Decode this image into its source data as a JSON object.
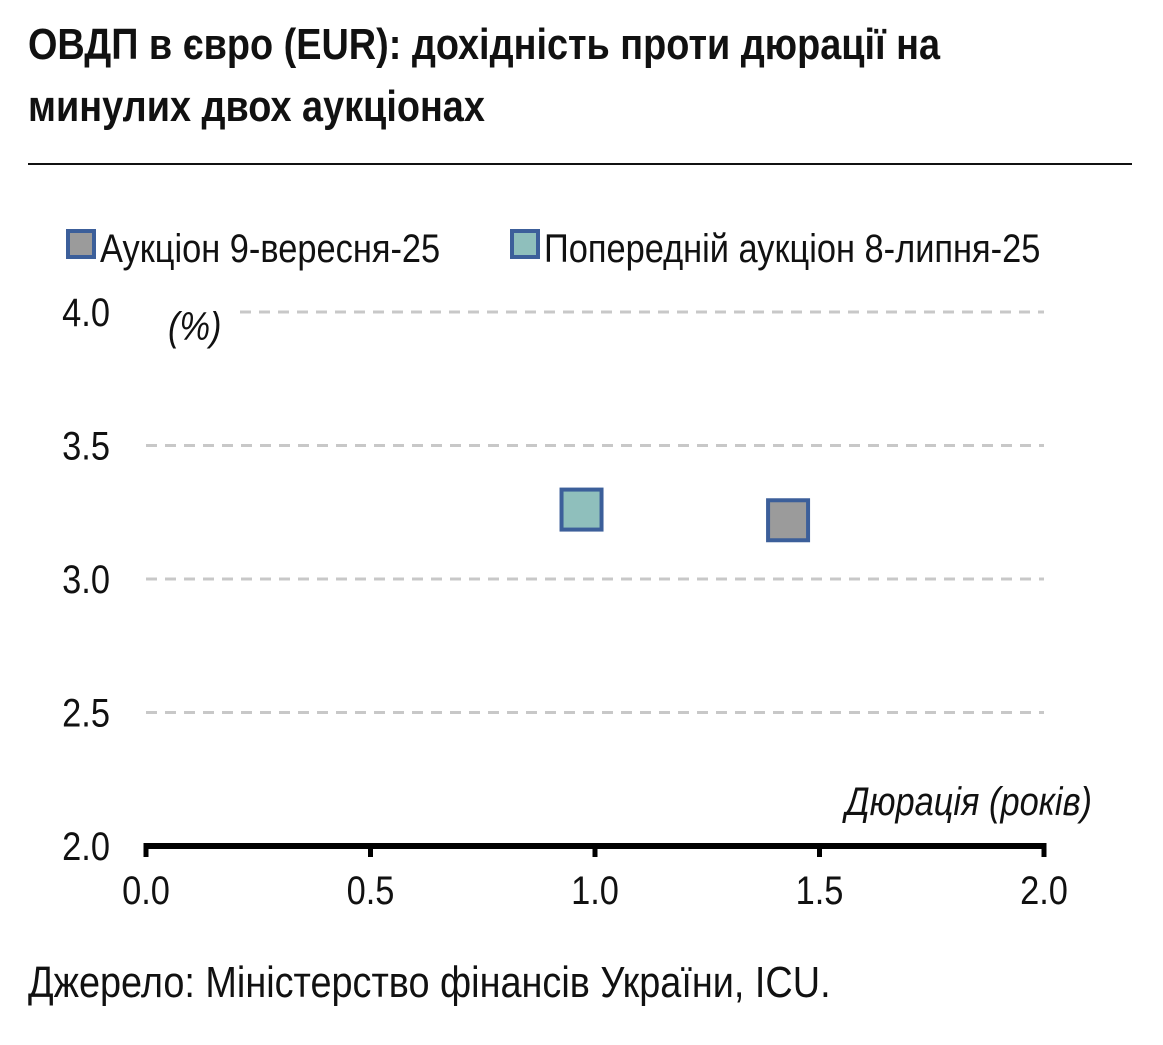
{
  "title": "ОВДП в євро (EUR): дохідність проти дюрації на минулих двох аукціонах",
  "source": "Джерело: Міністерство фінансів України, ICU.",
  "chart_data": {
    "type": "scatter",
    "title": "ОВДП в євро (EUR): дохідність проти дюрації на минулих двох аукціонах",
    "xlabel": "Дюрація (років)",
    "ylabel": "(%)",
    "xlim": [
      0.0,
      2.0
    ],
    "ylim": [
      2.0,
      4.0
    ],
    "x_ticks": [
      "0.0",
      "0.5",
      "1.0",
      "1.5",
      "2.0"
    ],
    "y_ticks": [
      "2.0",
      "2.5",
      "3.0",
      "3.5",
      "4.0"
    ],
    "grid": "horizontal-dashed",
    "legend_position": "top",
    "series": [
      {
        "name": "Аукціон 9-вересня-25",
        "color": "#9b9b9b",
        "edge": "#3c5f9a",
        "points": [
          {
            "x": 1.43,
            "y": 3.22
          }
        ]
      },
      {
        "name": "Попередній аукціон 8-липня-25",
        "color": "#8fbfbc",
        "edge": "#3c5f9a",
        "points": [
          {
            "x": 0.97,
            "y": 3.26
          }
        ]
      }
    ]
  }
}
